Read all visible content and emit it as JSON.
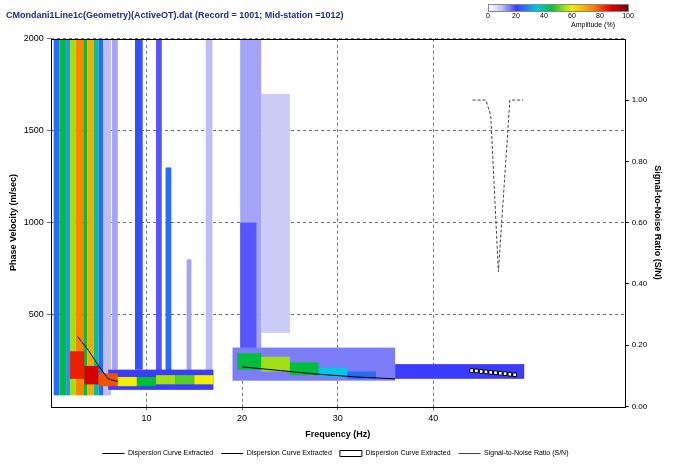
{
  "chart_data": {
    "type": "heatmap",
    "title": "CMondani1Line1c(Geometry)(ActiveOT).dat (Record = 1001; Mid-station =1012)",
    "x_label": "Frequency (Hz)",
    "y_label": "Phase Velocity (m/sec)",
    "y2_label": "Signal-to-Noise Ratio (S/N)",
    "xlim": [
      0,
      60
    ],
    "xticks": [
      10,
      20,
      30,
      40
    ],
    "ylim": [
      0,
      2000
    ],
    "yticks": [
      500,
      1000,
      1500,
      2000
    ],
    "y2lim": [
      0,
      1.2
    ],
    "y2ticks": [
      {
        "value": 0,
        "label": "0.00"
      },
      {
        "value": 0.2,
        "label": "0.20"
      },
      {
        "value": 0.4,
        "label": "0.40"
      },
      {
        "value": 0.6,
        "label": "0.60"
      },
      {
        "value": 0.8,
        "label": "0.80"
      },
      {
        "value": 1,
        "label": "1.00"
      }
    ],
    "grid": true,
    "legend": "bottom",
    "heatmap": {
      "cells": [
        [
          0.3,
          0.9,
          60,
          2000,
          25
        ],
        [
          0.9,
          1.6,
          60,
          2000,
          45
        ],
        [
          1.6,
          2.0,
          60,
          2000,
          30
        ],
        [
          2.0,
          2.6,
          60,
          2000,
          55
        ],
        [
          2.6,
          3.4,
          60,
          2000,
          75
        ],
        [
          3.4,
          3.8,
          60,
          2000,
          45
        ],
        [
          3.8,
          4.5,
          60,
          2000,
          70
        ],
        [
          4.5,
          5.0,
          60,
          2000,
          40
        ],
        [
          5.0,
          5.5,
          60,
          2000,
          25
        ],
        [
          5.5,
          6.3,
          60,
          2000,
          10
        ],
        [
          6.4,
          7.0,
          200,
          2000,
          12
        ],
        [
          8.8,
          9.6,
          200,
          2000,
          22
        ],
        [
          11.0,
          11.6,
          150,
          2000,
          18
        ],
        [
          12.0,
          12.6,
          150,
          1300,
          25
        ],
        [
          14.2,
          14.7,
          150,
          800,
          12
        ],
        [
          16.2,
          16.9,
          150,
          2000,
          10
        ],
        [
          19.8,
          22.0,
          300,
          2000,
          12
        ],
        [
          22.0,
          25.0,
          400,
          1700,
          8
        ],
        [
          19.8,
          21.5,
          300,
          1000,
          18
        ],
        [
          6.0,
          17.0,
          90,
          200,
          20
        ],
        [
          2.0,
          3.5,
          150,
          300,
          85
        ],
        [
          3.5,
          5.0,
          120,
          220,
          90
        ],
        [
          5.0,
          7.0,
          110,
          180,
          80
        ],
        [
          7.0,
          9.0,
          110,
          160,
          60
        ],
        [
          9.0,
          11.0,
          110,
          160,
          45
        ],
        [
          11.0,
          13.0,
          120,
          170,
          55
        ],
        [
          13.0,
          15.0,
          120,
          170,
          50
        ],
        [
          15.0,
          17.0,
          120,
          170,
          60
        ],
        [
          19.0,
          36.0,
          140,
          320,
          15
        ],
        [
          19.5,
          22.0,
          200,
          290,
          45
        ],
        [
          22.0,
          25.0,
          190,
          270,
          55
        ],
        [
          25.0,
          28.0,
          170,
          240,
          45
        ],
        [
          28.0,
          31.0,
          160,
          210,
          35
        ],
        [
          31.0,
          34.0,
          150,
          190,
          25
        ],
        [
          36.0,
          49.5,
          150,
          230,
          20
        ]
      ]
    },
    "colorbar": {
      "label": "Amplitude (%)",
      "range": [
        0,
        100
      ],
      "ticks": [
        0,
        20,
        40,
        60,
        80,
        100
      ]
    },
    "series": [
      {
        "name": "Dispersion Curve Extracted",
        "color": "#000000",
        "line_style": "solid",
        "marker": "none",
        "x": [
          2.8,
          4.0,
          5.0,
          6.0,
          7.0
        ],
        "values": [
          380,
          300,
          220,
          150,
          135
        ]
      },
      {
        "name": "Dispersion Curve Extracted",
        "color": "#000000",
        "line_style": "solid",
        "marker": "none",
        "x": [
          20,
          24,
          28,
          32,
          36
        ],
        "values": [
          215,
          195,
          175,
          160,
          150
        ]
      },
      {
        "name": "Dispersion Curve Extracted",
        "color": "#000000",
        "line_style": "solid",
        "marker": "square",
        "x": [
          44.0,
          44.5,
          45.0,
          45.5,
          46.0,
          46.5,
          47.0,
          47.5,
          48.0,
          48.5
        ],
        "values": [
          195,
          193,
          190,
          188,
          185,
          183,
          180,
          178,
          175,
          172
        ]
      },
      {
        "name": "Signal-to-Noise Ratio (S/N)",
        "color": "#444444",
        "line_style": "dashed",
        "marker": "none",
        "axis": "y2",
        "x": [
          44.1,
          45.5,
          46.0,
          46.8,
          48.0,
          49.4
        ],
        "values": [
          1,
          1,
          0.95,
          0.44,
          1,
          1
        ]
      }
    ]
  }
}
